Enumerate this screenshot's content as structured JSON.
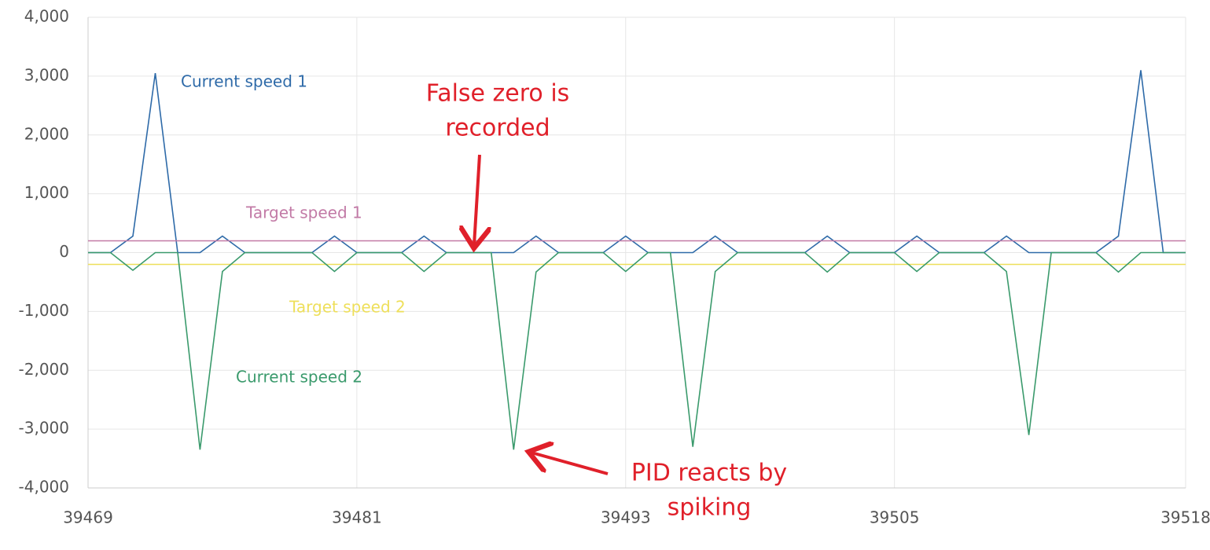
{
  "chart_data": {
    "type": "line",
    "x": [
      39469,
      39470,
      39471,
      39472,
      39473,
      39474,
      39475,
      39476,
      39477,
      39478,
      39479,
      39480,
      39481,
      39482,
      39483,
      39484,
      39485,
      39486,
      39487,
      39488,
      39489,
      39490,
      39491,
      39492,
      39493,
      39494,
      39495,
      39496,
      39497,
      39498,
      39499,
      39500,
      39501,
      39502,
      39503,
      39504,
      39505,
      39506,
      39507,
      39508,
      39509,
      39510,
      39511,
      39512,
      39513,
      39514,
      39515,
      39516,
      39517,
      39518
    ],
    "series": [
      {
        "name": "Current speed 1",
        "color": "#2e6aa8",
        "values": [
          0,
          0,
          280,
          3050,
          0,
          0,
          280,
          0,
          0,
          0,
          0,
          280,
          0,
          0,
          0,
          280,
          0,
          0,
          0,
          0,
          280,
          0,
          0,
          0,
          280,
          0,
          0,
          0,
          280,
          0,
          0,
          0,
          0,
          280,
          0,
          0,
          0,
          280,
          0,
          0,
          0,
          280,
          0,
          0,
          0,
          0,
          280,
          3100,
          0,
          0
        ]
      },
      {
        "name": "Target speed 1",
        "color": "#c27aa6",
        "values": [
          200,
          200,
          200,
          200,
          200,
          200,
          200,
          200,
          200,
          200,
          200,
          200,
          200,
          200,
          200,
          200,
          200,
          200,
          200,
          200,
          200,
          200,
          200,
          200,
          200,
          200,
          200,
          200,
          200,
          200,
          200,
          200,
          200,
          200,
          200,
          200,
          200,
          200,
          200,
          200,
          200,
          200,
          200,
          200,
          200,
          200,
          200,
          200,
          200,
          200
        ]
      },
      {
        "name": "Target speed 2",
        "color": "#eedf5a",
        "values": [
          -200,
          -200,
          -200,
          -200,
          -200,
          -200,
          -200,
          -200,
          -200,
          -200,
          -200,
          -200,
          -200,
          -200,
          -200,
          -200,
          -200,
          -200,
          -200,
          -200,
          -200,
          -200,
          -200,
          -200,
          -200,
          -200,
          -200,
          -200,
          -200,
          -200,
          -200,
          -200,
          -200,
          -200,
          -200,
          -200,
          -200,
          -200,
          -200,
          -200,
          -200,
          -200,
          -200,
          -200,
          -200,
          -200,
          -200,
          -200,
          -200,
          -200
        ]
      },
      {
        "name": "Current speed 2",
        "color": "#3a9a6c",
        "values": [
          0,
          0,
          -300,
          0,
          0,
          -3350,
          -320,
          0,
          0,
          0,
          0,
          -320,
          0,
          0,
          0,
          -320,
          0,
          0,
          0,
          -3350,
          -330,
          0,
          0,
          0,
          -320,
          0,
          0,
          -3300,
          -320,
          0,
          0,
          0,
          0,
          -330,
          0,
          0,
          0,
          -320,
          0,
          0,
          0,
          -320,
          -3100,
          0,
          0,
          0,
          -330,
          0,
          0,
          0
        ]
      }
    ],
    "xlim": [
      39469,
      39518
    ],
    "xticks": [
      39469,
      39481,
      39493,
      39505,
      39518
    ],
    "ylim": [
      -4000,
      4000
    ],
    "yticks": [
      {
        "value": -4000,
        "label": "-4,000"
      },
      {
        "value": -3000,
        "label": "-3,000"
      },
      {
        "value": -2000,
        "label": "-2,000"
      },
      {
        "value": -1000,
        "label": "-1,000"
      },
      0,
      {
        "value": 1000,
        "label": "1,000"
      },
      {
        "value": 2000,
        "label": "2,000"
      },
      {
        "value": 3000,
        "label": "3,000"
      },
      {
        "value": 4000,
        "label": "4,000"
      }
    ],
    "grid": true,
    "annotations": [
      [
        "False zero is",
        "recorded"
      ],
      [
        "PID reacts by",
        "spiking"
      ]
    ],
    "annotation_color": "#e0202a"
  }
}
